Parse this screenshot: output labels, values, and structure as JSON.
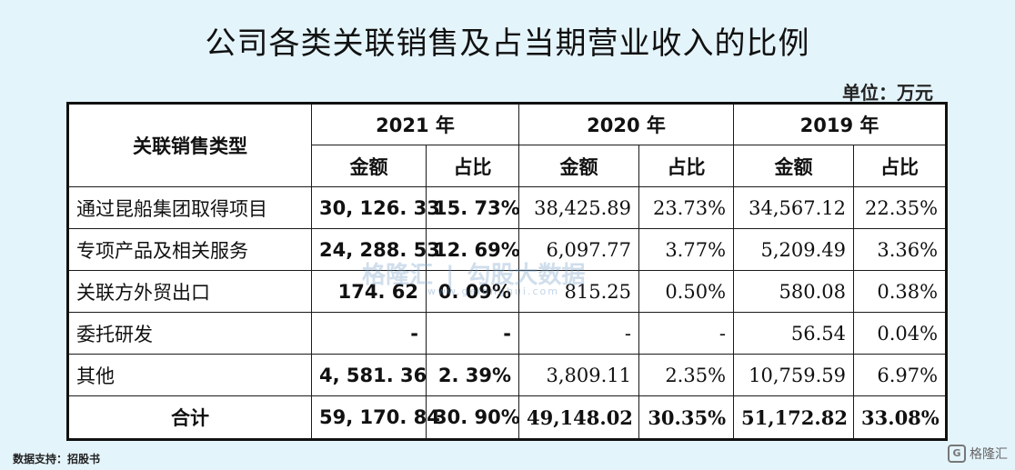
{
  "title": "公司各类关联销售及占当期营业收入的比例",
  "unit": "单位：万元",
  "table": {
    "row_header": "关联销售类型",
    "years": [
      "2021 年",
      "2020 年",
      "2019 年"
    ],
    "sub_headers": [
      "金额",
      "占比"
    ],
    "rows": [
      {
        "type": "通过昆船集团取得项目",
        "y2021_amount": "30, 126. 33",
        "y2021_ratio": "15. 73%",
        "y2020_amount": "38,425.89",
        "y2020_ratio": "23.73%",
        "y2019_amount": "34,567.12",
        "y2019_ratio": "22.35%"
      },
      {
        "type": "专项产品及相关服务",
        "y2021_amount": "24, 288. 53",
        "y2021_ratio": "12. 69%",
        "y2020_amount": "6,097.77",
        "y2020_ratio": "3.77%",
        "y2019_amount": "5,209.49",
        "y2019_ratio": "3.36%"
      },
      {
        "type": "关联方外贸出口",
        "y2021_amount": "174. 62",
        "y2021_ratio": "0. 09%",
        "y2020_amount": "815.25",
        "y2020_ratio": "0.50%",
        "y2019_amount": "580.08",
        "y2019_ratio": "0.38%"
      },
      {
        "type": "委托研发",
        "y2021_amount": "-",
        "y2021_ratio": "-",
        "y2020_amount": "-",
        "y2020_ratio": "-",
        "y2019_amount": "56.54",
        "y2019_ratio": "0.04%"
      },
      {
        "type": "其他",
        "y2021_amount": "4, 581. 36",
        "y2021_ratio": "2. 39%",
        "y2020_amount": "3,809.11",
        "y2020_ratio": "2.35%",
        "y2019_amount": "10,759.59",
        "y2019_ratio": "6.97%"
      }
    ],
    "total": {
      "type": "合计",
      "y2021_amount": "59, 170. 84",
      "y2021_ratio": "30. 90%",
      "y2020_amount": "49,148.02",
      "y2020_ratio": "30.35%",
      "y2019_amount": "51,172.82",
      "y2019_ratio": "33.08%"
    }
  },
  "source": "数据支持：招股书",
  "watermark": {
    "left": "格隆汇",
    "sep": "|",
    "right": "勾股大数据",
    "sub": "www.gelonghui.com"
  },
  "logo": {
    "mark": "G",
    "text": "格隆汇"
  },
  "colors": {
    "background": "#e4f4fb",
    "table_bg": "#ffffff",
    "border": "#1a1a1a"
  }
}
